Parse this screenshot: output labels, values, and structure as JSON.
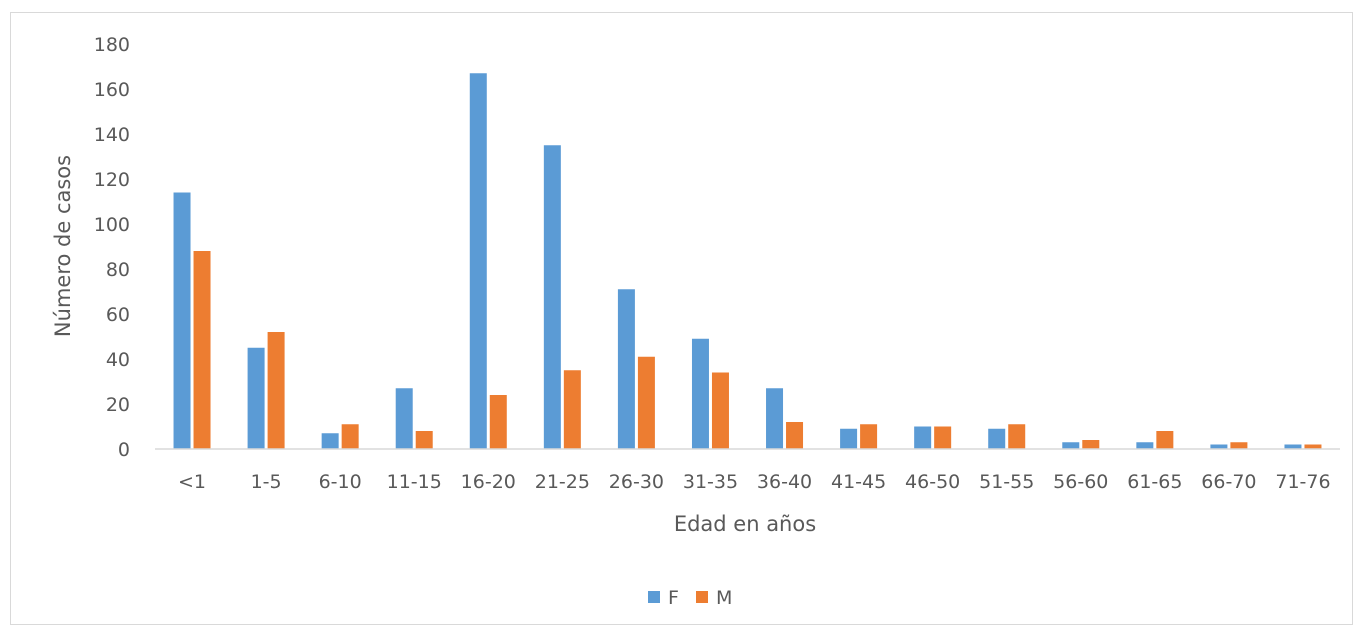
{
  "chart_data": {
    "type": "bar",
    "title": "",
    "xlabel": "Edad en años",
    "ylabel": "Número de casos",
    "ylim": [
      0,
      180
    ],
    "yticks": [
      0,
      20,
      40,
      60,
      80,
      100,
      120,
      140,
      160,
      180
    ],
    "grid": false,
    "legend_position": "bottom",
    "categories": [
      "<1",
      "1-5",
      "6-10",
      "11-15",
      "16-20",
      "21-25",
      "26-30",
      "31-35",
      "36-40",
      "41-45",
      "46-50",
      "51-55",
      "56-60",
      "61-65",
      "66-70",
      "71-76"
    ],
    "series": [
      {
        "name": "F",
        "color": "#5b9bd5",
        "values": [
          114,
          45,
          7,
          27,
          167,
          135,
          71,
          49,
          27,
          9,
          10,
          9,
          3,
          3,
          2,
          2
        ]
      },
      {
        "name": "M",
        "color": "#ed7d31",
        "values": [
          88,
          52,
          11,
          8,
          24,
          35,
          41,
          34,
          12,
          11,
          10,
          11,
          4,
          8,
          3,
          2
        ]
      }
    ]
  }
}
